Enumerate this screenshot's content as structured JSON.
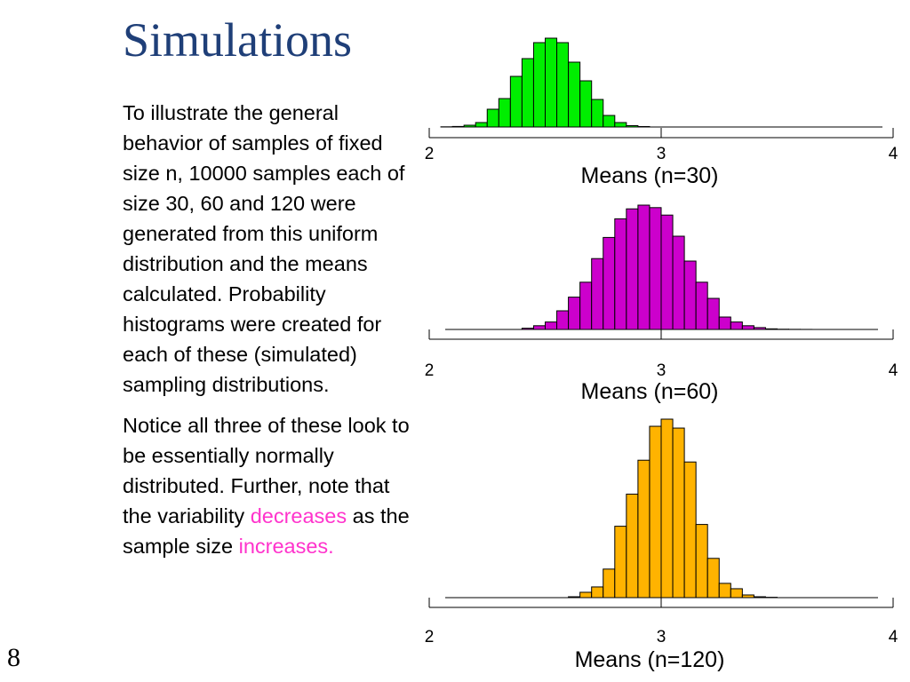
{
  "slide": {
    "title": "Simulations",
    "page_number": "8",
    "paragraph1": "To illustrate the general behavior of samples of fixed size n, 10000 samples each of size 30, 60 and 120 were generated from this uniform distribution and the means calculated. Probability histograms were created for each of these (simulated) sampling distributions.",
    "paragraph2": {
      "part1": "Notice all three of these look to be essentially normally distributed. Further, note that the variability ",
      "highlight1": "decreases",
      "part2": " as the sample size ",
      "highlight2": "increases."
    }
  },
  "colors": {
    "title": "#1f3f78",
    "highlight": "#ff33cc",
    "hist_n30": "#00ee00",
    "hist_n60": "#cc00cc",
    "hist_n120": "#ffb300"
  },
  "chart_data": [
    {
      "type": "bar",
      "title": "",
      "xlabel": "Means (n=30)",
      "ylabel": "",
      "xlim": [
        2,
        4
      ],
      "x_ticks": [
        "2",
        "3",
        "4"
      ],
      "bin_starts": [
        2.05,
        2.1,
        2.15,
        2.2,
        2.25,
        2.3,
        2.35,
        2.4,
        2.45,
        2.5,
        2.55,
        2.6,
        2.65,
        2.7,
        2.75,
        2.8,
        2.85,
        2.9
      ],
      "bin_width": 0.05,
      "values": [
        0.2,
        0.6,
        2,
        5,
        20,
        32,
        57,
        77,
        95,
        100,
        95,
        73,
        52,
        31,
        13,
        5,
        1.5,
        0.5
      ],
      "color": "#00ee00"
    },
    {
      "type": "bar",
      "title": "",
      "xlabel": "Means (n=60)",
      "ylabel": "",
      "xlim": [
        2,
        4
      ],
      "x_ticks": [
        "2",
        "3",
        "4"
      ],
      "bin_starts": [
        2.4,
        2.45,
        2.5,
        2.55,
        2.6,
        2.65,
        2.7,
        2.75,
        2.8,
        2.85,
        2.9,
        2.95,
        3.0,
        3.05,
        3.1,
        3.15,
        3.2,
        3.25,
        3.3,
        3.35,
        3.4,
        3.45,
        3.5,
        3.55,
        3.6
      ],
      "bin_width": 0.05,
      "values": [
        1,
        3,
        6,
        15,
        26,
        38,
        57,
        74,
        89,
        97,
        100,
        98,
        92,
        75,
        55,
        38,
        25,
        10,
        6,
        3,
        1.5,
        0.5,
        0.2,
        0.1,
        0.05
      ],
      "color": "#cc00cc"
    },
    {
      "type": "bar",
      "title": "",
      "xlabel": "Means (n=120)",
      "ylabel": "",
      "xlim": [
        2,
        4
      ],
      "x_ticks": [
        "2",
        "3",
        "4"
      ],
      "bin_starts": [
        2.6,
        2.65,
        2.7,
        2.75,
        2.8,
        2.85,
        2.9,
        2.95,
        3.0,
        3.05,
        3.1,
        3.15,
        3.2,
        3.25,
        3.3,
        3.35,
        3.4,
        3.45
      ],
      "bin_width": 0.05,
      "values": [
        0.5,
        3,
        6,
        16,
        40,
        58,
        77,
        96,
        100,
        95,
        76,
        41,
        22,
        8,
        5,
        1.5,
        0.5,
        0.2
      ],
      "color": "#ffb300"
    }
  ]
}
